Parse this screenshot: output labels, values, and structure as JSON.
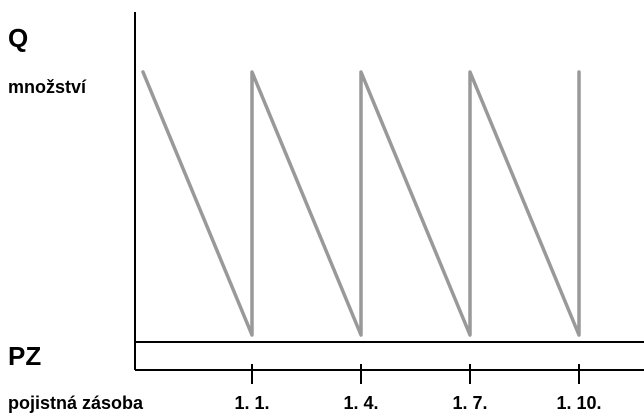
{
  "chart_data": {
    "type": "line",
    "ylabel": "Q",
    "ylabel_sub": "množství",
    "baseline_label": "PZ",
    "baseline_sub": "pojistná zásoba",
    "x": [
      "1. 1.",
      "1. 4.",
      "1. 7.",
      "1. 10."
    ],
    "series": [
      {
        "points": [
          {
            "x": 0.0,
            "y": 1.0
          },
          {
            "x": 1.0,
            "y": 0.0
          },
          {
            "x": 1.0,
            "y": 1.0
          },
          {
            "x": 2.0,
            "y": 0.0
          },
          {
            "x": 2.0,
            "y": 1.0
          },
          {
            "x": 3.0,
            "y": 0.0
          },
          {
            "x": 3.0,
            "y": 1.0
          },
          {
            "x": 4.0,
            "y": 0.0
          },
          {
            "x": 4.0,
            "y": 1.0
          }
        ]
      }
    ],
    "colors": {
      "line": "#999999",
      "axis": "#000000"
    }
  }
}
